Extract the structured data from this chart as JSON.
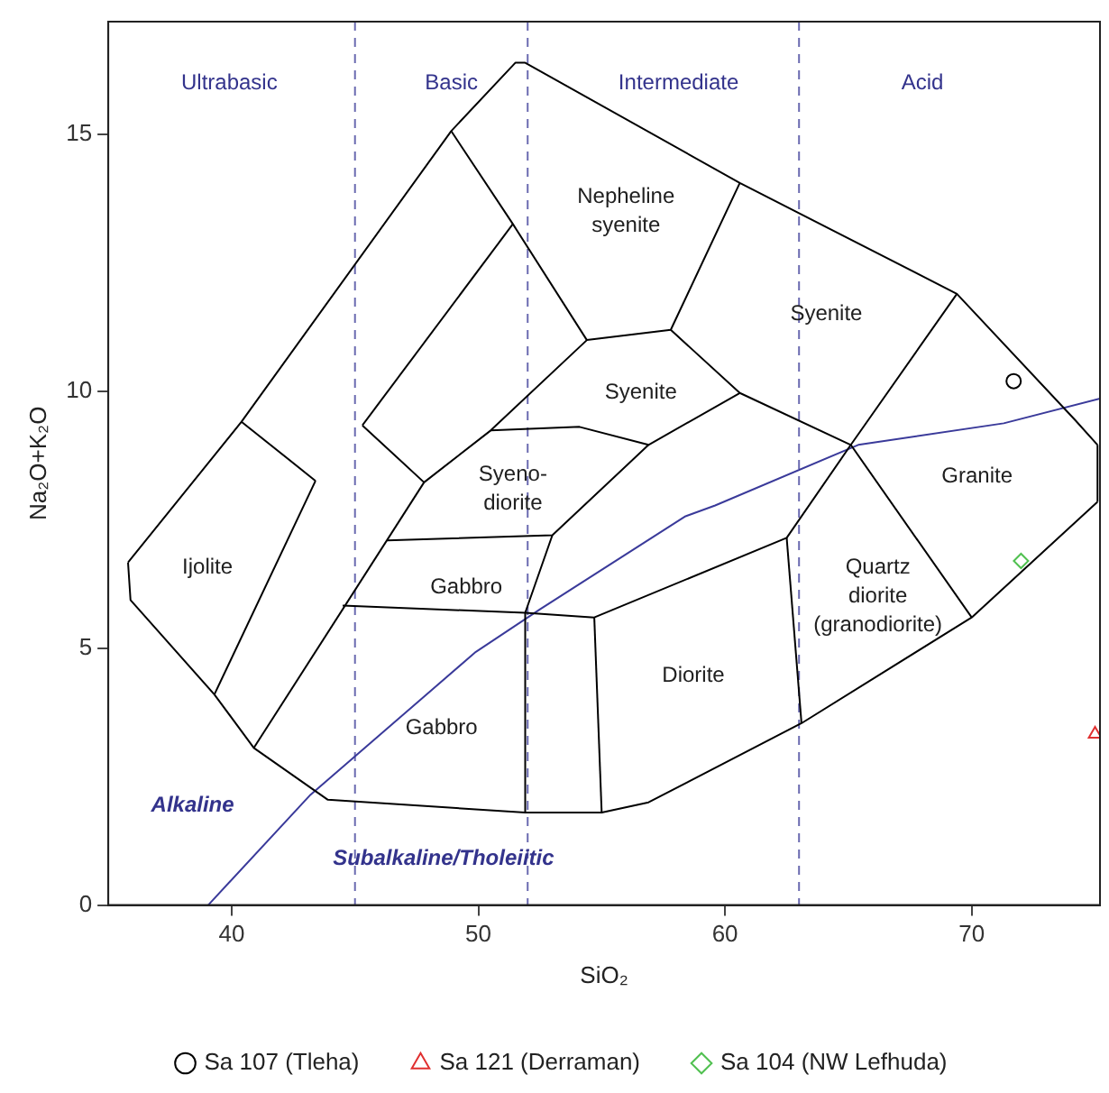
{
  "chart_data": {
    "type": "scatter",
    "xlabel": "SiO₂",
    "ylabel": "Na₂O+K₂O",
    "xlim": [
      35,
      75.2
    ],
    "ylim": [
      0,
      17.2
    ],
    "xticks": [
      40,
      50,
      60,
      70
    ],
    "yticks": [
      0,
      5,
      10,
      15
    ],
    "grid": false,
    "legend": "bottom",
    "series": [
      {
        "type": "line",
        "color": "#000000",
        "x": [
          35.8,
          35.9,
          39.3,
          40.9,
          43.9,
          51.9,
          55.0,
          56.9,
          63.1,
          70.0,
          75.1
        ],
        "values": [
          6.67,
          5.94,
          4.1,
          3.06,
          2.05,
          1.8,
          1.8,
          2.0,
          3.54,
          5.6,
          7.85
        ]
      },
      {
        "type": "line",
        "color": "#000000",
        "x": [
          75.1,
          75.1
        ],
        "values": [
          7.85,
          8.96
        ]
      },
      {
        "type": "line",
        "color": "#000000",
        "x": [
          35.8,
          40.4,
          48.9,
          51.5,
          51.9,
          60.6,
          69.4,
          74.2,
          75.1
        ],
        "values": [
          6.67,
          9.41,
          15.07,
          16.4,
          16.4,
          14.06,
          11.9,
          9.44,
          8.96
        ]
      },
      {
        "type": "line",
        "color": "#000000",
        "x": [
          48.9,
          51.4,
          54.4,
          57.8,
          60.6
        ],
        "values": [
          15.07,
          13.26,
          11.0,
          11.2,
          14.06
        ]
      },
      {
        "type": "line",
        "color": "#000000",
        "x": [
          57.8,
          60.6,
          65.1,
          69.4
        ],
        "values": [
          11.2,
          9.97,
          8.96,
          11.9
        ]
      },
      {
        "type": "line",
        "color": "#000000",
        "x": [
          50.5,
          54.1,
          56.9,
          60.6
        ],
        "values": [
          9.24,
          9.31,
          8.96,
          9.97
        ]
      },
      {
        "type": "line",
        "color": "#000000",
        "x": [
          45.3,
          51.4
        ],
        "values": [
          9.34,
          13.26
        ]
      },
      {
        "type": "line",
        "color": "#000000",
        "x": [
          45.3,
          47.8,
          50.5,
          54.4
        ],
        "values": [
          9.34,
          8.23,
          9.24,
          11.0
        ]
      },
      {
        "type": "line",
        "color": "#000000",
        "x": [
          40.4,
          43.4
        ],
        "values": [
          9.41,
          8.26
        ]
      },
      {
        "type": "line",
        "color": "#000000",
        "x": [
          39.3,
          43.4
        ],
        "values": [
          4.1,
          8.26
        ]
      },
      {
        "type": "line",
        "color": "#000000",
        "x": [
          40.9,
          47.8
        ],
        "values": [
          3.06,
          8.23
        ]
      },
      {
        "type": "line",
        "color": "#000000",
        "x": [
          46.3,
          53.0,
          56.9
        ],
        "values": [
          7.1,
          7.2,
          8.96
        ]
      },
      {
        "type": "line",
        "color": "#000000",
        "x": [
          44.5,
          51.9,
          54.7,
          62.5,
          65.1,
          70.0
        ],
        "values": [
          5.83,
          5.69,
          5.6,
          7.15,
          8.96,
          5.6
        ]
      },
      {
        "type": "line",
        "color": "#000000",
        "x": [
          51.9,
          51.9,
          53.0
        ],
        "values": [
          1.8,
          5.69,
          7.2
        ]
      },
      {
        "type": "line",
        "color": "#000000",
        "x": [
          54.7,
          55.0
        ],
        "values": [
          5.6,
          1.8
        ]
      },
      {
        "type": "line",
        "color": "#000000",
        "x": [
          62.5,
          63.1
        ],
        "values": [
          7.15,
          3.54
        ]
      },
      {
        "type": "line",
        "color": "#3a3a9a",
        "x": [
          39.05,
          43.2,
          49.9,
          52.5,
          58.4,
          59.6,
          65.4,
          71.3,
          75.2
        ],
        "values": [
          0,
          2.15,
          4.93,
          5.76,
          7.57,
          7.78,
          8.96,
          9.38,
          9.86
        ]
      },
      {
        "type": "scatter",
        "name": "Sa 107 (Tleha)",
        "color": "#000000",
        "marker": "circle",
        "x": [
          71.7
        ],
        "values": [
          10.2
        ]
      },
      {
        "type": "scatter",
        "name": "Sa 121 (Derraman)",
        "color": "#e03030",
        "marker": "triangle",
        "x": [
          75.0
        ],
        "values": [
          3.33
        ]
      },
      {
        "type": "scatter",
        "name": "Sa 104 (NW Lefhuda)",
        "color": "#50c050",
        "marker": "diamond",
        "x": [
          72.0
        ],
        "values": [
          6.7
        ]
      }
    ],
    "ref_lines": [
      {
        "axis": "x",
        "value": 45,
        "color": "#6a6ab0",
        "line_style": "dashed"
      },
      {
        "axis": "x",
        "value": 52,
        "color": "#6a6ab0",
        "line_style": "dashed"
      },
      {
        "axis": "x",
        "value": 63,
        "color": "#6a6ab0",
        "line_style": "dashed"
      }
    ],
    "annotations": [
      "Ultrabasic",
      "Basic",
      "Intermediate",
      "Acid",
      "Nepheline\nsyenite",
      "Syenite",
      "Syenite",
      "Syeno-\ndiorite",
      "Granite",
      "Ijolite",
      "Gabbro",
      "Quartz\ndiorite\n(granodiorite)",
      "Diorite",
      "Gabbro",
      "Alkaline",
      "Subalkaline/Tholeiitic"
    ]
  }
}
